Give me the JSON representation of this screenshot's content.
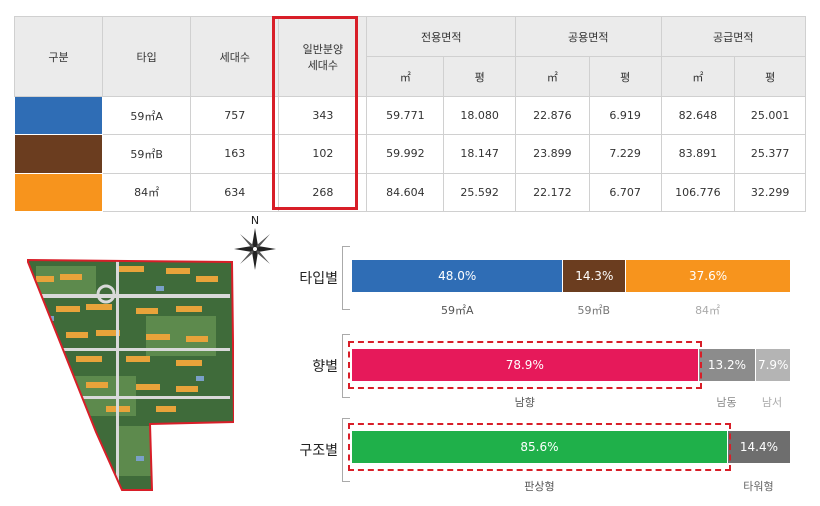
{
  "table": {
    "headers": {
      "division": "구분",
      "type": "타입",
      "households": "세대수",
      "general_sale_line1": "일반분양",
      "general_sale_line2": "세대수",
      "exclusive_area": "전용면적",
      "common_area": "공용면적",
      "supply_area": "공급면적",
      "sqm": "㎡",
      "pyeong": "평"
    },
    "rows": [
      {
        "color": "#2f6db5",
        "type": "59㎡A",
        "households": "757",
        "general_sale": "343",
        "exclusive_sqm": "59.771",
        "exclusive_py": "18.080",
        "common_sqm": "22.876",
        "common_py": "6.919",
        "supply_sqm": "82.648",
        "supply_py": "25.001"
      },
      {
        "color": "#6b3d1f",
        "type": "59㎡B",
        "households": "163",
        "general_sale": "102",
        "exclusive_sqm": "59.992",
        "exclusive_py": "18.147",
        "common_sqm": "23.899",
        "common_py": "7.229",
        "supply_sqm": "83.891",
        "supply_py": "25.377"
      },
      {
        "color": "#f7941d",
        "type": "84㎡",
        "households": "634",
        "general_sale": "268",
        "exclusive_sqm": "84.604",
        "exclusive_py": "25.592",
        "common_sqm": "22.172",
        "common_py": "6.707",
        "supply_sqm": "106.776",
        "supply_py": "32.299"
      }
    ]
  },
  "compass_label": "N",
  "chart_data": [
    {
      "type": "bar",
      "stacked": true,
      "orientation": "horizontal",
      "title": "타입별",
      "categories": [
        "59㎡A",
        "59㎡B",
        "84㎡"
      ],
      "values": [
        48.0,
        14.3,
        37.6
      ],
      "labels": [
        "48.0%",
        "14.3%",
        "37.6%"
      ],
      "colors": [
        "#2f6db5",
        "#6b3d1f",
        "#f7941d"
      ],
      "category_colors": [
        "#555555",
        "#777777",
        "#aaaaaa"
      ]
    },
    {
      "type": "bar",
      "stacked": true,
      "orientation": "horizontal",
      "title": "향별",
      "categories": [
        "남향",
        "남동",
        "남서"
      ],
      "values": [
        78.9,
        13.2,
        7.9
      ],
      "labels": [
        "78.9%",
        "13.2%",
        "7.9%"
      ],
      "colors": [
        "#e6195a",
        "#8c8c8c",
        "#b4b4b4"
      ],
      "category_colors": [
        "#555555",
        "#888888",
        "#aaaaaa"
      ],
      "highlighted": "남향"
    },
    {
      "type": "bar",
      "stacked": true,
      "orientation": "horizontal",
      "title": "구조별",
      "categories": [
        "판상형",
        "타워형"
      ],
      "values": [
        85.6,
        14.4
      ],
      "labels": [
        "85.6%",
        "14.4%"
      ],
      "colors": [
        "#1fb04a",
        "#6e6e6e"
      ],
      "category_colors": [
        "#555555",
        "#666666"
      ],
      "highlighted": "판상형"
    }
  ]
}
